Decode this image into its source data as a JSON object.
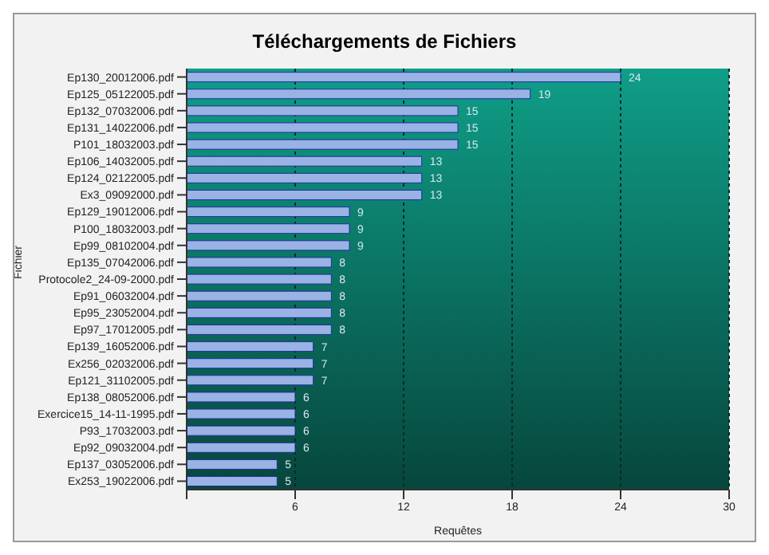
{
  "chart_data": {
    "type": "bar",
    "orientation": "horizontal",
    "title": "Téléchargements de Fichiers",
    "xlabel": "Requêtes",
    "ylabel": "Fichier",
    "categories": [
      "Ep130_20012006.pdf",
      "Ep125_05122005.pdf",
      "Ep132_07032006.pdf",
      "Ep131_14022006.pdf",
      "P101_18032003.pdf",
      "Ep106_14032005.pdf",
      "Ep124_02122005.pdf",
      "Ex3_09092000.pdf",
      "Ep129_19012006.pdf",
      "P100_18032003.pdf",
      "Ep99_08102004.pdf",
      "Ep135_07042006.pdf",
      "Protocole2_24-09-2000.pdf",
      "Ep91_06032004.pdf",
      "Ep95_23052004.pdf",
      "Ep97_17012005.pdf",
      "Ep139_16052006.pdf",
      "Ex256_02032006.pdf",
      "Ep121_31102005.pdf",
      "Ep138_08052006.pdf",
      "Exercice15_14-11-1995.pdf",
      "P93_17032003.pdf",
      "Ep92_09032004.pdf",
      "Ep137_03052006.pdf",
      "Ex253_19022006.pdf"
    ],
    "values": [
      24,
      19,
      15,
      15,
      15,
      13,
      13,
      13,
      9,
      9,
      9,
      8,
      8,
      8,
      8,
      8,
      7,
      7,
      7,
      6,
      6,
      6,
      6,
      5,
      5
    ],
    "color": "#9ab2e4",
    "data_labels": true,
    "xlim": [
      0,
      30
    ],
    "xticks": [
      {
        "value": 0,
        "label": null
      },
      6,
      12,
      18,
      24,
      30
    ],
    "grid": "x"
  }
}
